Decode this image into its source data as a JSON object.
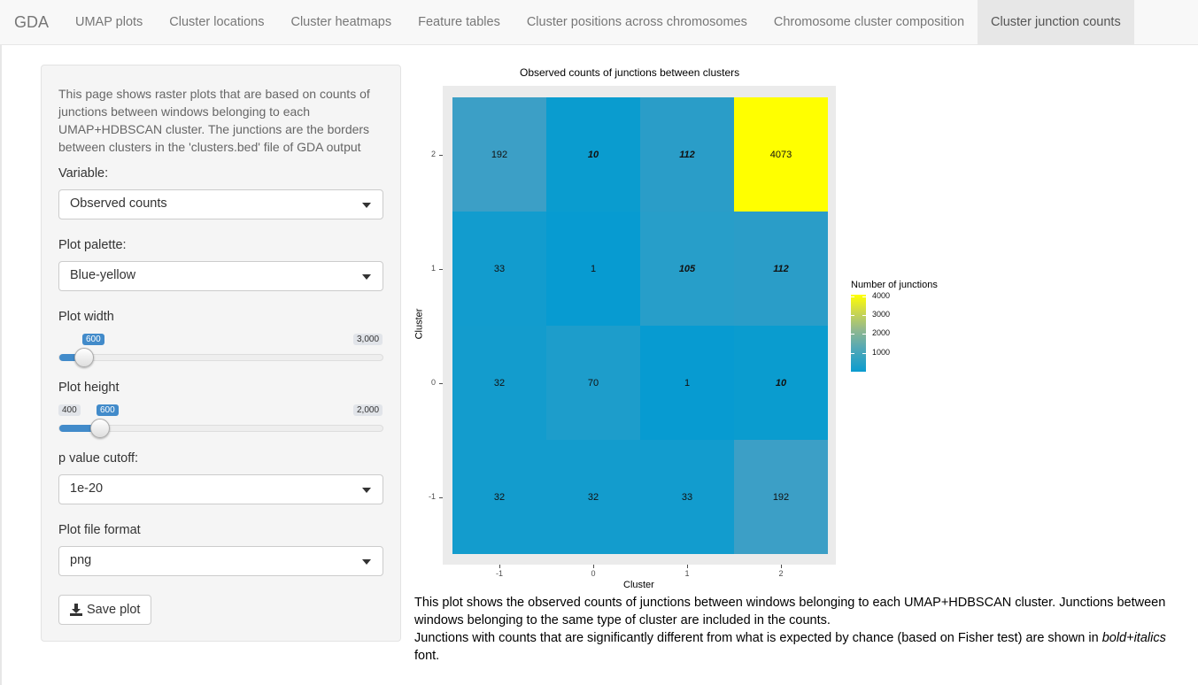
{
  "navbar": {
    "brand": "GDA",
    "tabs": [
      {
        "label": "UMAP plots",
        "active": false
      },
      {
        "label": "Cluster locations",
        "active": false
      },
      {
        "label": "Cluster heatmaps",
        "active": false
      },
      {
        "label": "Feature tables",
        "active": false
      },
      {
        "label": "Cluster positions across chromosomes",
        "active": false
      },
      {
        "label": "Chromosome cluster composition",
        "active": false
      },
      {
        "label": "Cluster junction counts",
        "active": true
      }
    ]
  },
  "sidebar": {
    "intro": "This page shows raster plots that are based on counts of junctions between windows belonging to each UMAP+HDBSCAN cluster. The junctions are the borders between clusters in the 'clusters.bed' file of GDA output",
    "variable": {
      "label": "Variable:",
      "value": "Observed counts"
    },
    "palette": {
      "label": "Plot palette:",
      "value": "Blue-yellow"
    },
    "width": {
      "label": "Plot width",
      "value": "600",
      "max_label": "3,000",
      "value_num": 600,
      "min": 400,
      "max": 3000
    },
    "height": {
      "label": "Plot height",
      "value": "600",
      "min_label": "400",
      "max_label": "2,000",
      "value_num": 600,
      "min": 400,
      "max": 2000
    },
    "pcutoff": {
      "label": "p value cutoff:",
      "value": "1e-20"
    },
    "format": {
      "label": "Plot file format",
      "value": "png"
    },
    "save_button": "Save plot"
  },
  "chart_data": {
    "type": "heatmap",
    "title": "Observed counts of junctions between clusters",
    "xlabel": "Cluster",
    "ylabel": "Cluster",
    "x_categories": [
      "-1",
      "0",
      "1",
      "2"
    ],
    "y_categories": [
      "-1",
      "0",
      "1",
      "2"
    ],
    "palette": {
      "low": "#0a9ccf",
      "high": "#ffff00"
    },
    "cells": [
      {
        "x": "-1",
        "y": "2",
        "value": 192,
        "label": "192",
        "significant": false,
        "color": "#3c9fc6"
      },
      {
        "x": "0",
        "y": "2",
        "value": 10,
        "label": "10",
        "significant": true,
        "color": "#0a9ccf"
      },
      {
        "x": "1",
        "y": "2",
        "value": 112,
        "label": "112",
        "significant": true,
        "color": "#2a9dc8"
      },
      {
        "x": "2",
        "y": "2",
        "value": 4073,
        "label": "4073",
        "significant": false,
        "color": "#ffff00"
      },
      {
        "x": "-1",
        "y": "1",
        "value": 33,
        "label": "33",
        "significant": false,
        "color": "#129cce"
      },
      {
        "x": "0",
        "y": "1",
        "value": 1,
        "label": "1",
        "significant": false,
        "color": "#079bd1"
      },
      {
        "x": "1",
        "y": "1",
        "value": 105,
        "label": "105",
        "significant": true,
        "color": "#279ec9"
      },
      {
        "x": "2",
        "y": "1",
        "value": 112,
        "label": "112",
        "significant": true,
        "color": "#2a9dc8"
      },
      {
        "x": "-1",
        "y": "0",
        "value": 32,
        "label": "32",
        "significant": false,
        "color": "#139ccd"
      },
      {
        "x": "0",
        "y": "0",
        "value": 70,
        "label": "70",
        "significant": false,
        "color": "#1d9dcb"
      },
      {
        "x": "1",
        "y": "0",
        "value": 1,
        "label": "1",
        "significant": false,
        "color": "#079bd1"
      },
      {
        "x": "2",
        "y": "0",
        "value": 10,
        "label": "10",
        "significant": true,
        "color": "#0a9ccf"
      },
      {
        "x": "-1",
        "y": "-1",
        "value": 32,
        "label": "32",
        "significant": false,
        "color": "#139ccd"
      },
      {
        "x": "0",
        "y": "-1",
        "value": 32,
        "label": "32",
        "significant": false,
        "color": "#139ccd"
      },
      {
        "x": "1",
        "y": "-1",
        "value": 33,
        "label": "33",
        "significant": false,
        "color": "#129cce"
      },
      {
        "x": "2",
        "y": "-1",
        "value": 192,
        "label": "192",
        "significant": false,
        "color": "#3c9fc6"
      }
    ],
    "legend": {
      "title": "Number of junctions",
      "ticks": [
        "4000",
        "3000",
        "2000",
        "1000"
      ],
      "range": [
        1,
        4073
      ],
      "placement": "right"
    }
  },
  "caption": {
    "line1": "This plot shows the observed counts of junctions between windows belonging to each UMAP+HDBSCAN cluster. Junctions between windows belonging to the same type of cluster are included in the counts.",
    "line2_pre": "Junctions with counts that are significantly different from what is expected by chance (based on Fisher test) are shown in ",
    "line2_em": "bold+italics",
    "line2_post": " font."
  }
}
